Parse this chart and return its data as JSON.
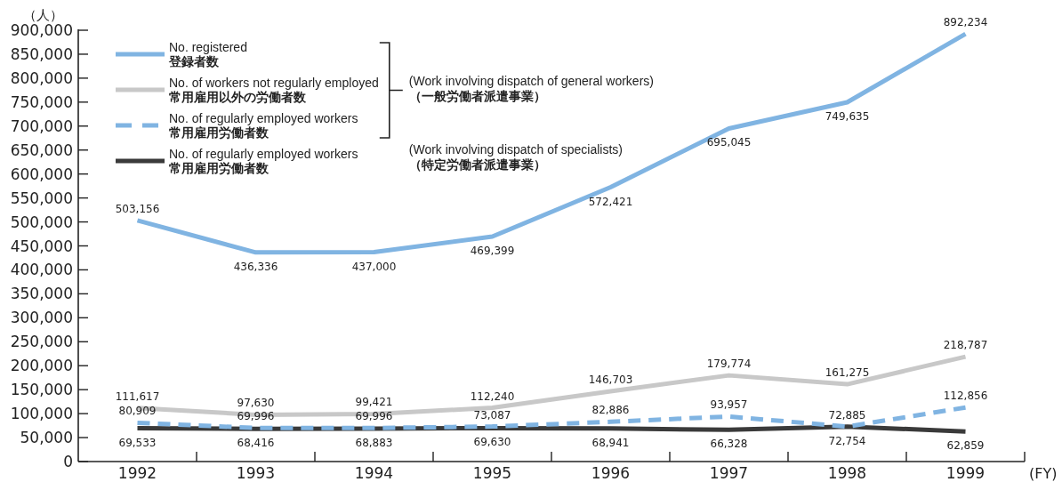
{
  "chart_data": {
    "type": "line",
    "ylabel": "（人）",
    "xlabel": "(FY)",
    "categories": [
      "1992",
      "1993",
      "1994",
      "1995",
      "1996",
      "1997",
      "1998",
      "1999"
    ],
    "ylim": [
      0,
      900000
    ],
    "yticks": [
      0,
      {
        "value": 50000,
        "label": "50,000"
      },
      {
        "value": 100000,
        "label": "100,000"
      },
      {
        "value": 150000,
        "label": "150,000"
      },
      {
        "value": 200000,
        "label": "200,000"
      },
      {
        "value": 250000,
        "label": "250,000"
      },
      {
        "value": 300000,
        "label": "300,000"
      },
      {
        "value": 350000,
        "label": "350,000"
      },
      {
        "value": 400000,
        "label": "400,000"
      },
      {
        "value": 450000,
        "label": "450,000"
      },
      {
        "value": 500000,
        "label": "500,000"
      },
      {
        "value": 550000,
        "label": "550,000"
      },
      {
        "value": 600000,
        "label": "600,000"
      },
      {
        "value": 650000,
        "label": "650,000"
      },
      {
        "value": 700000,
        "label": "700,000"
      },
      {
        "value": 750000,
        "label": "750,000"
      },
      {
        "value": 800000,
        "label": "800,000"
      },
      {
        "value": 850000,
        "label": "850,000"
      },
      {
        "value": 900000,
        "label": "900,000"
      }
    ],
    "line_style": "solid",
    "legend": "top left",
    "series": [
      {
        "name": "No. registered\n登録者数",
        "color": "#80b4e2",
        "values": [
          503156,
          436336,
          437000,
          469399,
          572421,
          695045,
          749635,
          892234
        ],
        "value_labels": [
          "503,156",
          "436,336",
          "437,000",
          "469,399",
          "572,421",
          "695,045",
          "749,635",
          "892,234"
        ]
      },
      {
        "name": "No. of workers not regularly employed\n常用雇用以外の労働者数",
        "color": "#c8c8c8",
        "values": [
          111617,
          97630,
          99421,
          112240,
          146703,
          179774,
          161275,
          218787
        ],
        "value_labels": [
          "111,617",
          "97,630",
          "99,421",
          "112,240",
          "146,703",
          "179,774",
          "161,275",
          "218,787"
        ]
      },
      {
        "name": "No. of regularly employed workers\n常用雇用労働者数",
        "color": "#80b4e2",
        "line_style": "dashed",
        "values": [
          80909,
          69996,
          69996,
          73087,
          82886,
          93957,
          72885,
          112856
        ],
        "value_labels": [
          "80,909",
          "69,996",
          "69,996",
          "73,087",
          "82,886",
          "93,957",
          "72,885",
          "112,856"
        ]
      },
      {
        "name": "No. of regularly employed workers\n常用雇用労働者数",
        "color": "#3a3a3a",
        "values": [
          69533,
          68416,
          68883,
          69630,
          68941,
          66328,
          72754,
          62859
        ],
        "value_labels": [
          "69,533",
          "68,416",
          "68,883",
          "69,630",
          "68,941",
          "66,328",
          "72,754",
          "62,859"
        ]
      }
    ],
    "annotations": [
      "(Work involving dispatch of general workers)\n（一般労働者派遣事業）",
      "(Work involving dispatch of specialists)\n（特定労働者派遣事業）"
    ]
  }
}
